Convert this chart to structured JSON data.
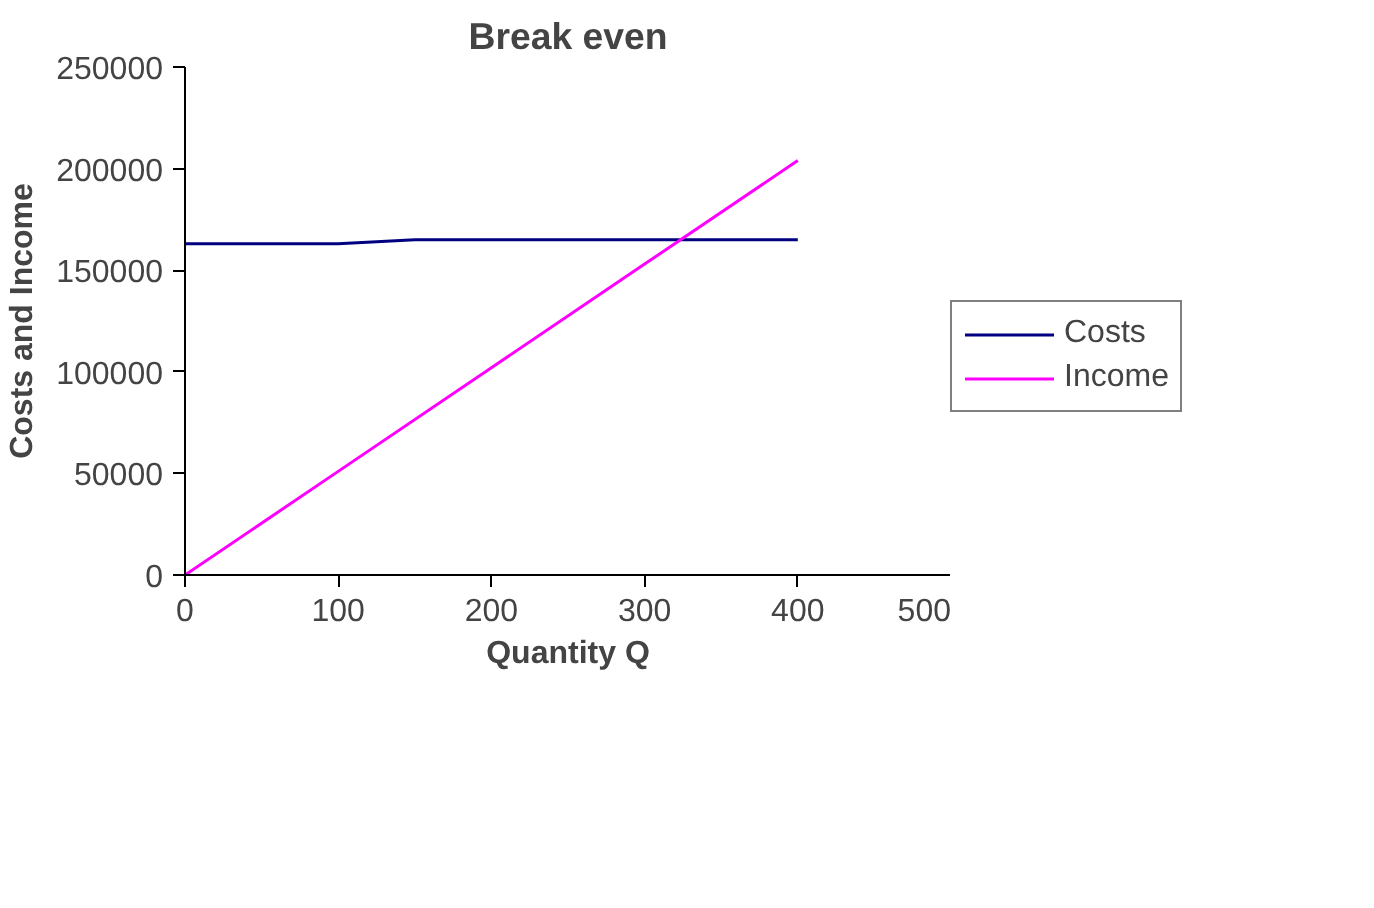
{
  "chart_data": {
    "type": "line",
    "title": "Break even",
    "xlabel": "Quantity Q",
    "ylabel": "Costs and Income",
    "xlim": [
      0,
      500
    ],
    "xticks": [
      0,
      100,
      200,
      300,
      400,
      500
    ],
    "ylim": [
      0,
      250000
    ],
    "yticks": [
      0,
      50000,
      100000,
      150000,
      200000,
      250000
    ],
    "grid": false,
    "legend": "right",
    "marker": "none",
    "line_style": "solid",
    "series": [
      {
        "name": "Costs",
        "color": "#000080",
        "x": [
          0,
          100,
          150,
          200,
          250,
          300,
          350,
          400
        ],
        "values": [
          163000,
          163000,
          165000,
          165000,
          165000,
          165000,
          165000,
          165000
        ]
      },
      {
        "name": "Income",
        "color": "#ff00ff",
        "x": [
          0,
          100,
          200,
          300,
          400
        ],
        "values": [
          0,
          51000,
          102000,
          153000,
          204000
        ]
      }
    ]
  }
}
